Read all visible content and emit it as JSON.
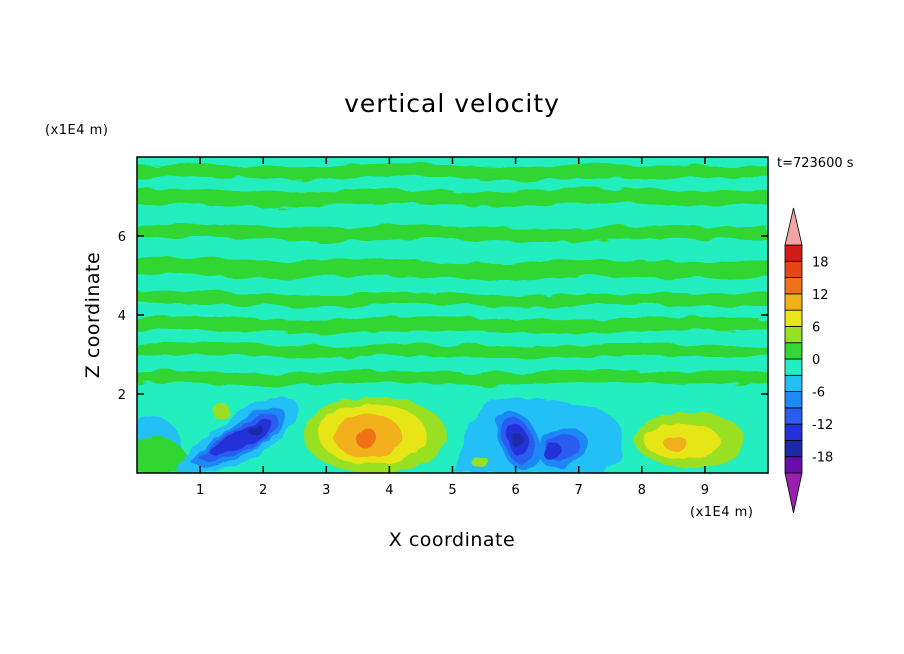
{
  "chart_data": {
    "type": "heatmap",
    "title": "vertical velocity",
    "xlabel": "X coordinate",
    "ylabel": "Z coordinate",
    "x_unit": "(x1E4 m)",
    "y_unit": "(x1E4 m)",
    "time_label": "t=723600 s",
    "xlim": [
      0,
      10
    ],
    "ylim": [
      0,
      8
    ],
    "x_ticks": [
      "1",
      "2",
      "3",
      "4",
      "5",
      "6",
      "7",
      "8",
      "9"
    ],
    "y_ticks": [
      "2",
      "4",
      "6"
    ],
    "colorbar": {
      "levels": [
        -21,
        -18,
        -15,
        -12,
        -9,
        -6,
        -3,
        0,
        3,
        6,
        9,
        12,
        15,
        18,
        21
      ],
      "colors": [
        "#6a0dad",
        "#1a2aa8",
        "#2233d8",
        "#2a5cf0",
        "#1e88f5",
        "#23c0f6",
        "#22eec0",
        "#33d633",
        "#99e022",
        "#e6e619",
        "#f2b01a",
        "#ef7316",
        "#e84515",
        "#d41b18"
      ],
      "under_color": "#9a1fb0",
      "over_color": "#f2a5a5",
      "tick_labels": [
        "18",
        "12",
        "6",
        "0",
        "-6",
        "-12",
        "-18"
      ]
    },
    "field_features": [
      {
        "sign": "negative",
        "x_center": 1.8,
        "z_center": 0.9,
        "peak": -15
      },
      {
        "sign": "positive",
        "x_center": 3.7,
        "z_center": 0.9,
        "peak": 12
      },
      {
        "sign": "negative",
        "x_center": 6.0,
        "z_center": 0.9,
        "peak": -15
      },
      {
        "sign": "negative",
        "x_center": 6.5,
        "z_center": 0.7,
        "peak": -12
      },
      {
        "sign": "positive",
        "x_center": 8.6,
        "z_center": 0.7,
        "peak": 9
      }
    ]
  }
}
